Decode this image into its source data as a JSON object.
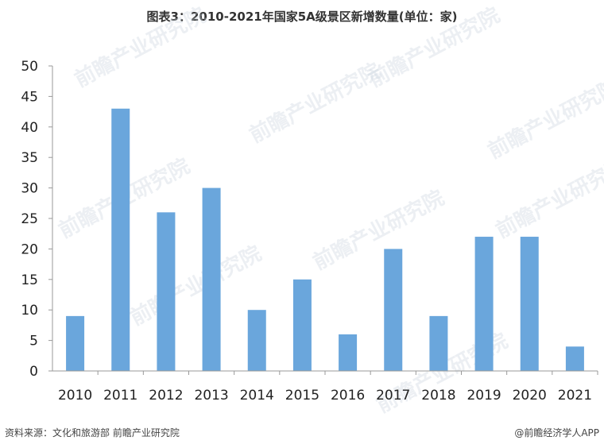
{
  "title": "图表3：2010-2021年国家5A级景区新增数量(单位：家)",
  "watermark": "前瞻产业研究院",
  "footer": {
    "source": "资料来源：文化和旅游部 前瞻产业研究院",
    "brand": "@前瞻经济学人APP"
  },
  "chart_data": {
    "type": "bar",
    "categories": [
      "2010",
      "2011",
      "2012",
      "2013",
      "2014",
      "2015",
      "2016",
      "2017",
      "2018",
      "2019",
      "2020",
      "2021"
    ],
    "values": [
      9,
      43,
      26,
      30,
      10,
      15,
      6,
      20,
      9,
      22,
      22,
      4
    ],
    "ylim": [
      0,
      50
    ],
    "yticks": [
      0,
      5,
      10,
      15,
      20,
      25,
      30,
      35,
      40,
      45,
      50
    ],
    "bar_color": "#6aa6dc",
    "grid": false
  }
}
